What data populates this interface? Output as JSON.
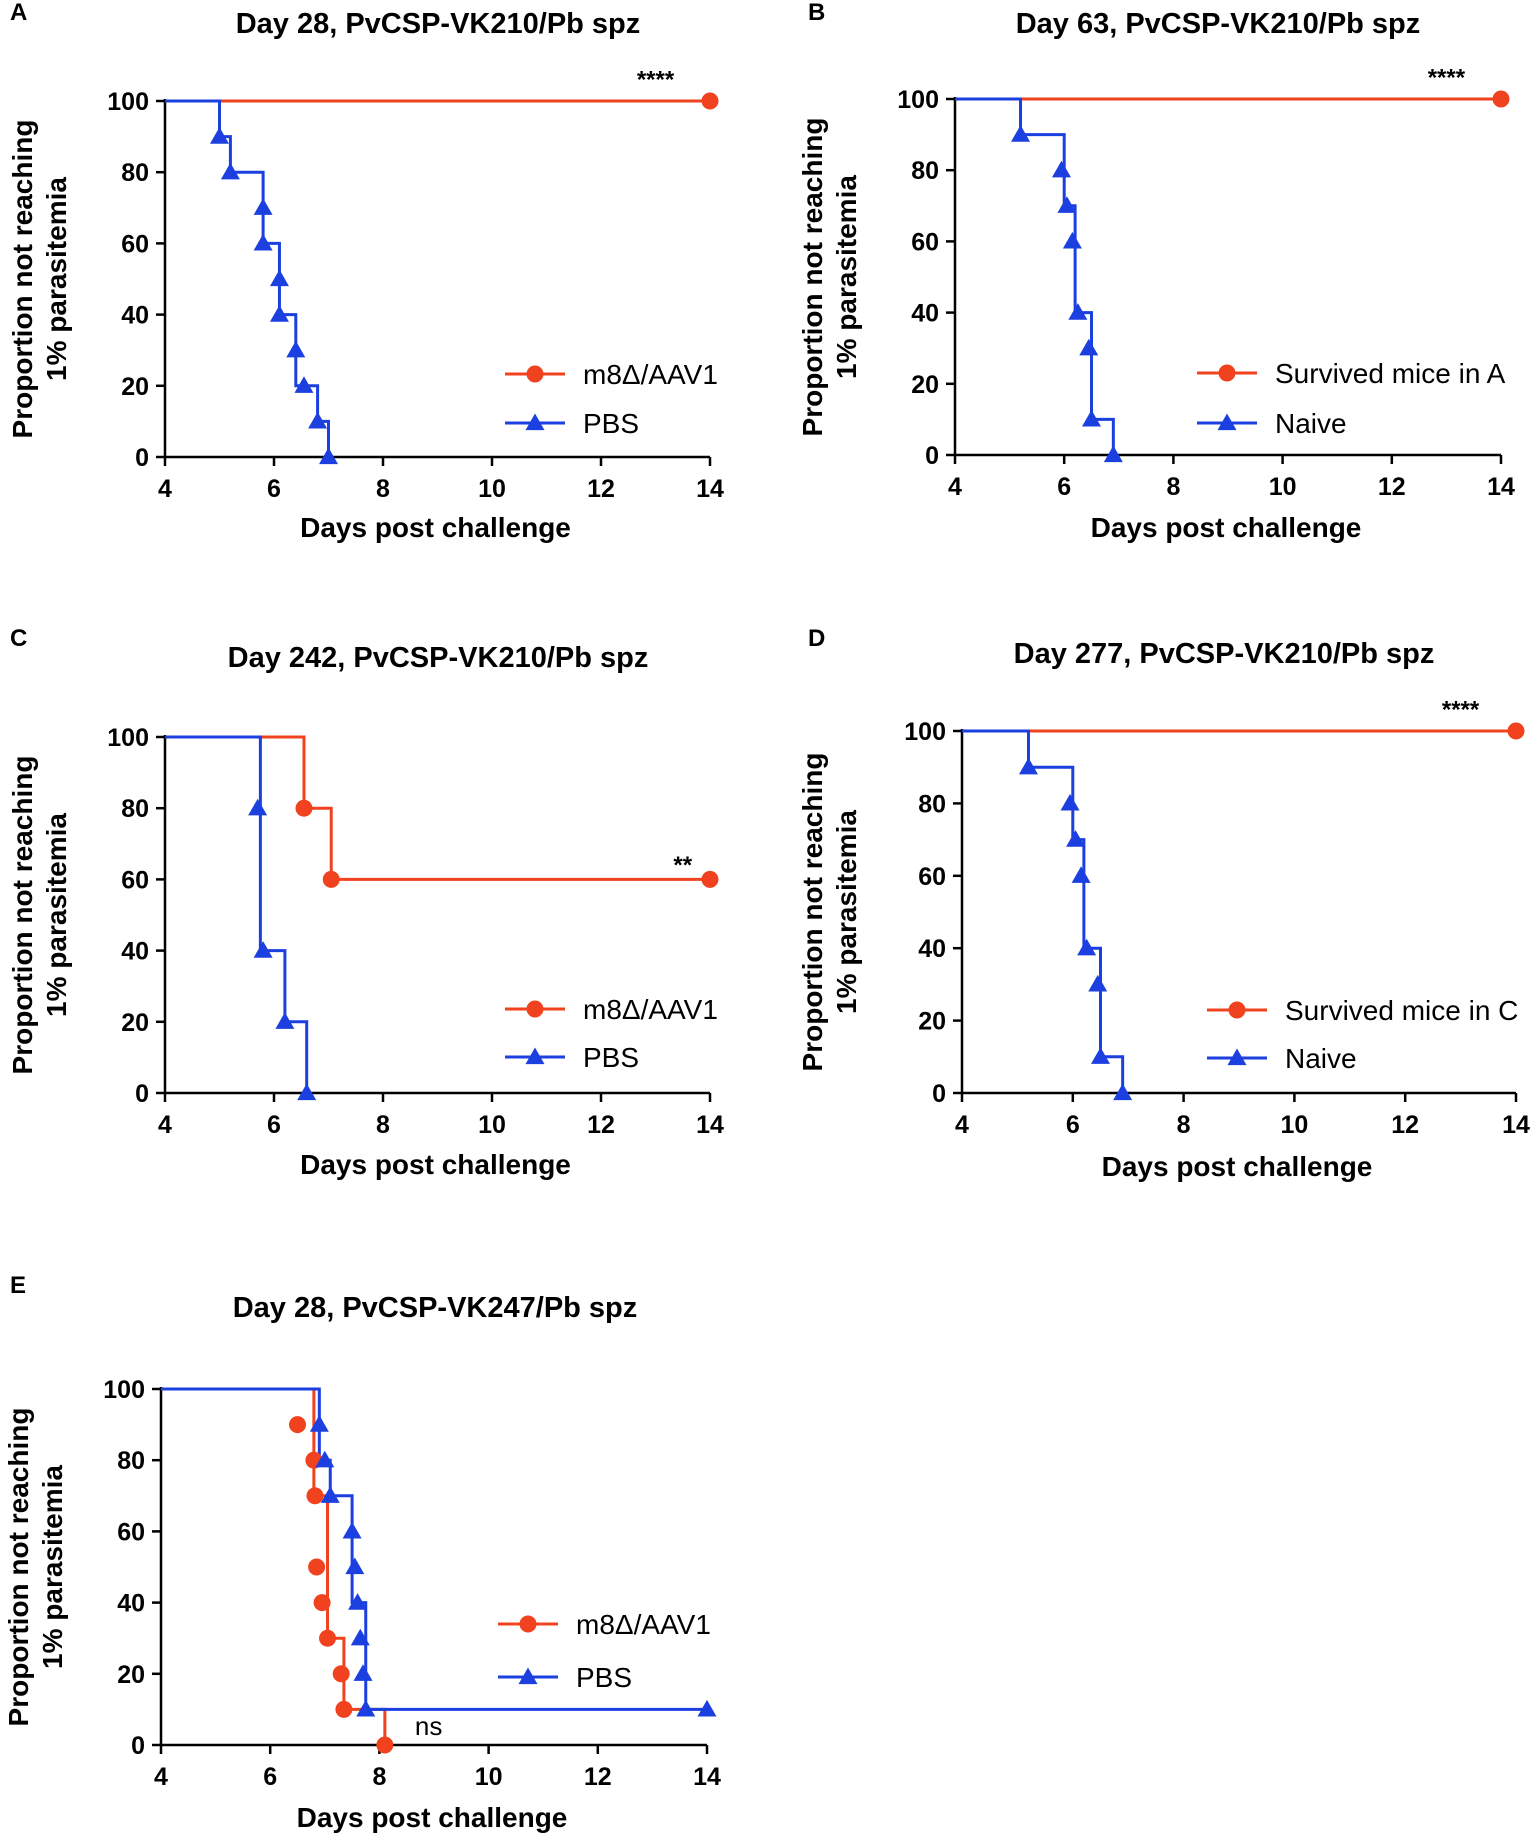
{
  "figure": {
    "colors": {
      "red": "#f0421e",
      "blue": "#1c3fe0",
      "axis": "#000000"
    },
    "common": {
      "xlabel": "Days post challenge",
      "ylabel_line1": "Proportion not reaching",
      "ylabel_line2": "1% parasitemia",
      "xlim": [
        4,
        14
      ],
      "ylim": [
        0,
        100
      ],
      "xticks": [
        "4",
        "6",
        "8",
        "10",
        "12",
        "14"
      ],
      "yticks": [
        "0",
        "20",
        "40",
        "60",
        "80",
        "100"
      ]
    }
  },
  "chart_data": [
    {
      "panel": "A",
      "type": "line",
      "title": "Day 28, PvCSP-VK210/Pb spz",
      "legend_position": "right",
      "series": [
        {
          "name": "m8Δ/AAV1",
          "color": "red",
          "marker": "circle",
          "x": [
            4,
            14
          ],
          "y": [
            100,
            100
          ],
          "marker_points": [
            [
              14,
              100
            ]
          ]
        },
        {
          "name": "PBS",
          "color": "blue",
          "marker": "triangle",
          "x": [
            4,
            5.0,
            5.0,
            5.2,
            5.2,
            5.8,
            5.8,
            6.1,
            6.1,
            6.4,
            6.4,
            6.8,
            6.8,
            7.0,
            7.0
          ],
          "y": [
            100,
            100,
            90,
            90,
            80,
            80,
            60,
            60,
            40,
            40,
            20,
            20,
            10,
            10,
            0
          ],
          "marker_points": [
            [
              5.0,
              90
            ],
            [
              5.2,
              80
            ],
            [
              5.8,
              70
            ],
            [
              5.8,
              60
            ],
            [
              6.1,
              50
            ],
            [
              6.1,
              40
            ],
            [
              6.4,
              30
            ],
            [
              6.55,
              20
            ],
            [
              6.8,
              10
            ],
            [
              7.0,
              0
            ]
          ]
        }
      ],
      "annotations": [
        {
          "text": "****",
          "x": 13.0,
          "y": 106
        }
      ]
    },
    {
      "panel": "B",
      "type": "line",
      "title": "Day 63, PvCSP-VK210/Pb spz",
      "legend_position": "right",
      "series": [
        {
          "name": "Survived mice in A",
          "color": "red",
          "marker": "circle",
          "x": [
            4,
            14
          ],
          "y": [
            100,
            100
          ],
          "marker_points": [
            [
              14,
              100
            ]
          ]
        },
        {
          "name": "Naive",
          "color": "blue",
          "marker": "triangle",
          "x": [
            4,
            5.2,
            5.2,
            6.0,
            6.0,
            6.2,
            6.2,
            6.5,
            6.5,
            6.9,
            6.9
          ],
          "y": [
            100,
            100,
            90,
            90,
            70,
            70,
            40,
            40,
            10,
            10,
            0
          ],
          "marker_points": [
            [
              5.2,
              90
            ],
            [
              5.95,
              80
            ],
            [
              6.05,
              70
            ],
            [
              6.15,
              60
            ],
            [
              6.25,
              40
            ],
            [
              6.45,
              30
            ],
            [
              6.5,
              10
            ],
            [
              6.9,
              0
            ]
          ]
        }
      ],
      "annotations": [
        {
          "text": "****",
          "x": 13.0,
          "y": 106
        }
      ]
    },
    {
      "panel": "C",
      "type": "line",
      "title": "Day 242, PvCSP-VK210/Pb spz",
      "legend_position": "right",
      "series": [
        {
          "name": "m8Δ/AAV1",
          "color": "red",
          "marker": "circle",
          "x": [
            4,
            6.55,
            6.55,
            7.05,
            7.05,
            14
          ],
          "y": [
            100,
            100,
            80,
            80,
            60,
            60
          ],
          "marker_points": [
            [
              6.55,
              80
            ],
            [
              7.05,
              60
            ],
            [
              14,
              60
            ]
          ]
        },
        {
          "name": "PBS",
          "color": "blue",
          "marker": "triangle",
          "x": [
            4,
            5.75,
            5.75,
            6.2,
            6.2,
            6.6,
            6.6
          ],
          "y": [
            100,
            100,
            40,
            40,
            20,
            20,
            0
          ],
          "marker_points": [
            [
              5.7,
              80
            ],
            [
              5.8,
              40
            ],
            [
              6.2,
              20
            ],
            [
              6.6,
              0
            ]
          ]
        }
      ],
      "annotations": [
        {
          "text": "**",
          "x": 13.5,
          "y": 64
        }
      ]
    },
    {
      "panel": "D",
      "type": "line",
      "title": "Day 277, PvCSP-VK210/Pb spz",
      "legend_position": "right",
      "series": [
        {
          "name": "Survived mice in C",
          "color": "red",
          "marker": "circle",
          "x": [
            4,
            14
          ],
          "y": [
            100,
            100
          ],
          "marker_points": [
            [
              14,
              100
            ]
          ]
        },
        {
          "name": "Naive",
          "color": "blue",
          "marker": "triangle",
          "x": [
            4,
            5.2,
            5.2,
            6.0,
            6.0,
            6.2,
            6.2,
            6.5,
            6.5,
            6.9,
            6.9
          ],
          "y": [
            100,
            100,
            90,
            90,
            70,
            70,
            40,
            40,
            10,
            10,
            0
          ],
          "marker_points": [
            [
              5.2,
              90
            ],
            [
              5.95,
              80
            ],
            [
              6.05,
              70
            ],
            [
              6.15,
              60
            ],
            [
              6.25,
              40
            ],
            [
              6.45,
              30
            ],
            [
              6.5,
              10
            ],
            [
              6.9,
              0
            ]
          ]
        }
      ],
      "annotations": [
        {
          "text": "****",
          "x": 13.0,
          "y": 106
        }
      ]
    },
    {
      "panel": "E",
      "type": "line",
      "title": "Day 28, PvCSP-VK247/Pb spz",
      "legend_position": "right",
      "series": [
        {
          "name": "m8Δ/AAV1",
          "color": "red",
          "marker": "circle",
          "x": [
            4,
            6.8,
            6.8,
            7.05,
            7.05,
            7.35,
            7.35,
            8.1,
            8.1
          ],
          "y": [
            100,
            100,
            70,
            70,
            30,
            30,
            10,
            10,
            0
          ],
          "marker_points": [
            [
              6.5,
              90
            ],
            [
              6.8,
              80
            ],
            [
              6.82,
              70
            ],
            [
              6.85,
              50
            ],
            [
              6.95,
              40
            ],
            [
              7.05,
              30
            ],
            [
              7.3,
              20
            ],
            [
              7.35,
              10
            ],
            [
              8.1,
              0
            ]
          ]
        },
        {
          "name": "PBS",
          "color": "blue",
          "marker": "triangle",
          "x": [
            4,
            6.9,
            6.9,
            7.1,
            7.1,
            7.5,
            7.5,
            7.75,
            7.75,
            14
          ],
          "y": [
            100,
            100,
            80,
            80,
            70,
            70,
            40,
            40,
            10,
            10
          ],
          "marker_points": [
            [
              6.9,
              90
            ],
            [
              7.0,
              80
            ],
            [
              7.1,
              70
            ],
            [
              7.5,
              60
            ],
            [
              7.55,
              50
            ],
            [
              7.6,
              40
            ],
            [
              7.65,
              30
            ],
            [
              7.7,
              20
            ],
            [
              7.75,
              10
            ],
            [
              14,
              10
            ]
          ]
        }
      ],
      "annotations": [
        {
          "text": "ns",
          "x": 8.65,
          "y": 5
        }
      ]
    }
  ]
}
